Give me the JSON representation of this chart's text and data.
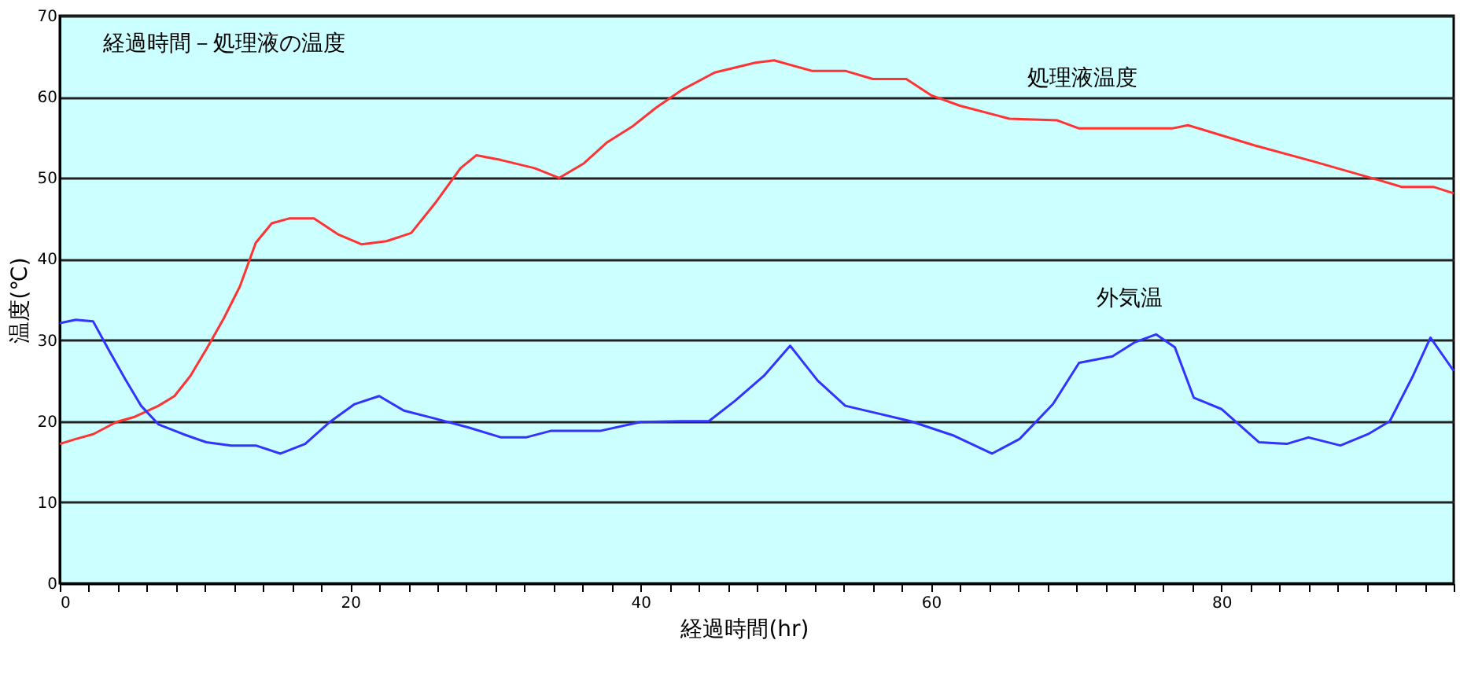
{
  "chart_data": {
    "type": "line",
    "title": "経過時間－処理液の温度",
    "xlabel": "経過時間(hr)",
    "ylabel": "温度(℃)",
    "xlim": [
      0,
      96
    ],
    "ylim": [
      0,
      70
    ],
    "xticks": [
      0,
      {
        "value": 2,
        "label": null
      },
      {
        "value": 4,
        "label": null
      },
      {
        "value": 6,
        "label": null
      },
      {
        "value": 8,
        "label": null
      },
      {
        "value": 10,
        "label": null
      },
      {
        "value": 12,
        "label": null
      },
      {
        "value": 14,
        "label": null
      },
      {
        "value": 16,
        "label": null
      },
      {
        "value": 18,
        "label": null
      },
      20,
      {
        "value": 22,
        "label": null
      },
      {
        "value": 24,
        "label": null
      },
      {
        "value": 26,
        "label": null
      },
      {
        "value": 28,
        "label": null
      },
      {
        "value": 30,
        "label": null
      },
      {
        "value": 32,
        "label": null
      },
      {
        "value": 34,
        "label": null
      },
      {
        "value": 36,
        "label": null
      },
      {
        "value": 38,
        "label": null
      },
      40,
      {
        "value": 42,
        "label": null
      },
      {
        "value": 44,
        "label": null
      },
      {
        "value": 46,
        "label": null
      },
      {
        "value": 48,
        "label": null
      },
      {
        "value": 50,
        "label": null
      },
      {
        "value": 52,
        "label": null
      },
      {
        "value": 54,
        "label": null
      },
      {
        "value": 56,
        "label": null
      },
      {
        "value": 58,
        "label": null
      },
      60,
      {
        "value": 62,
        "label": null
      },
      {
        "value": 64,
        "label": null
      },
      {
        "value": 66,
        "label": null
      },
      {
        "value": 68,
        "label": null
      },
      {
        "value": 70,
        "label": null
      },
      {
        "value": 72,
        "label": null
      },
      {
        "value": 74,
        "label": null
      },
      {
        "value": 76,
        "label": null
      },
      {
        "value": 78,
        "label": null
      },
      80,
      {
        "value": 82,
        "label": null
      },
      {
        "value": 84,
        "label": null
      },
      {
        "value": 86,
        "label": null
      },
      {
        "value": 88,
        "label": null
      },
      {
        "value": 90,
        "label": null
      },
      {
        "value": 92,
        "label": null
      },
      {
        "value": 94,
        "label": null
      },
      {
        "value": 96,
        "label": null
      }
    ],
    "yticks": [
      0,
      10,
      20,
      30,
      40,
      50,
      60,
      70
    ],
    "grid": "y",
    "legend": false,
    "marker": "none",
    "line_style": "solid",
    "series": [
      {
        "name": "処理液温度",
        "color": "#ff3333",
        "x": [
          0,
          1.1,
          2.3,
          3.9,
          5.1,
          6.8,
          7.9,
          9,
          10.1,
          11.3,
          12.4,
          13.5,
          14.6,
          15.8,
          17.5,
          19.2,
          20.8,
          22.5,
          24.2,
          25.9,
          27.6,
          28.7,
          30.4,
          32.7,
          34.4,
          36.1,
          37.7,
          39.4,
          41.1,
          42.8,
          45.1,
          47.9,
          49.2,
          51.8,
          54.1,
          56,
          58.3,
          60,
          62,
          65.4,
          68.7,
          70.2,
          76.6,
          77.7,
          82.3,
          86.4,
          90.9,
          92.4,
          94.6,
          96
        ],
        "values": [
          17.2,
          17.8,
          18.4,
          19.9,
          20.5,
          21.9,
          23.1,
          25.6,
          28.9,
          32.7,
          36.6,
          42,
          44.4,
          45,
          45,
          43,
          41.8,
          42.2,
          43.2,
          47,
          51.2,
          52.8,
          52.2,
          51.2,
          50,
          51.8,
          54.4,
          56.3,
          58.7,
          60.8,
          63,
          64.2,
          64.5,
          63.2,
          63.2,
          62.2,
          62.2,
          60.2,
          58.9,
          57.3,
          57.1,
          56.1,
          56.1,
          56.5,
          54,
          52,
          49.7,
          48.9,
          48.9,
          48.1
        ]
      },
      {
        "name": "外気温",
        "color": "#3333ff",
        "x": [
          0,
          1.1,
          2.3,
          3.4,
          4.5,
          5.6,
          6.8,
          8.5,
          10.1,
          11.8,
          13.5,
          15.2,
          16.9,
          18.6,
          20.3,
          22,
          23.7,
          25.9,
          28.2,
          30.4,
          32.1,
          33.8,
          37.2,
          40,
          42.8,
          44.7,
          46.5,
          48.5,
          50.3,
          52.2,
          54.1,
          56,
          58.6,
          61.6,
          64.2,
          66.1,
          68.4,
          70.2,
          72.5,
          74,
          75.5,
          76.8,
          78.1,
          80,
          82.6,
          84.5,
          86,
          88.2,
          90.1,
          91.6,
          93.2,
          94.4,
          96
        ],
        "values": [
          32.1,
          32.5,
          32.3,
          28.7,
          25.2,
          21.9,
          19.6,
          18.4,
          17.4,
          17,
          17,
          16,
          17.2,
          19.9,
          22.1,
          23.1,
          21.3,
          20.3,
          19.2,
          18,
          18,
          18.8,
          18.8,
          19.9,
          20,
          20,
          22.5,
          25.6,
          29.3,
          25,
          21.9,
          21.1,
          20,
          18.2,
          16,
          17.8,
          22.1,
          27.2,
          28,
          29.7,
          30.7,
          29.1,
          22.9,
          21.5,
          17.4,
          17.2,
          18,
          17,
          18.4,
          20,
          25.6,
          30.3,
          26.2
        ]
      }
    ]
  }
}
